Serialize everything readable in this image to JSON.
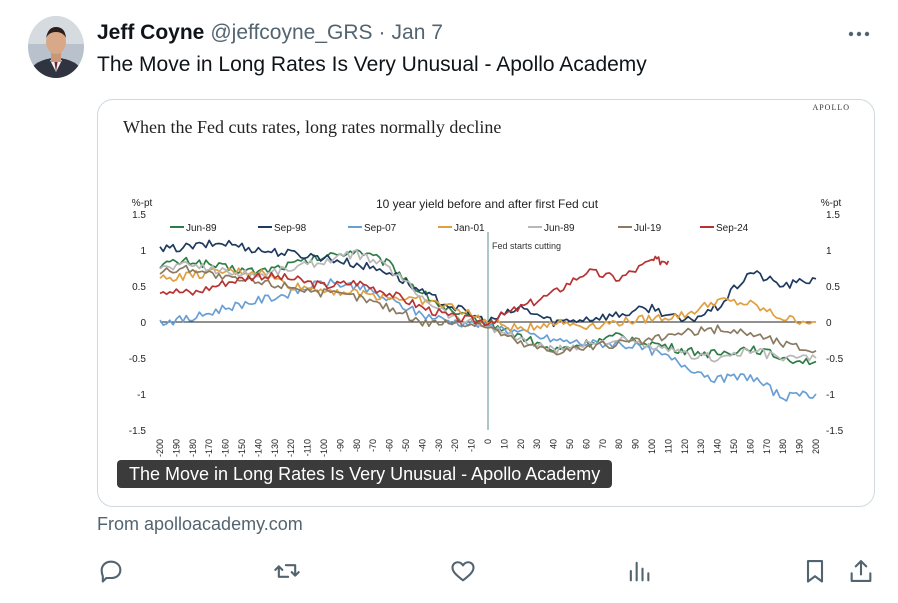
{
  "post": {
    "author_name": "Jeff Coyne",
    "handle": "@jeffcoyne_GRS",
    "separator": "·",
    "date": "Jan 7",
    "text": "The Move in Long Rates Is Very Unusual - Apollo Academy"
  },
  "card": {
    "title": "The Move in Long Rates Is Very Unusual - Apollo Academy",
    "source": "From apolloacademy.com"
  },
  "actions": [
    "reply-icon",
    "repost-icon",
    "like-icon",
    "views-icon",
    "bookmark-icon",
    "share-icon"
  ],
  "chart_data": {
    "type": "line",
    "brand": "APOLLO",
    "headline": "When the Fed cuts rates, long rates normally decline",
    "title": "10 year yield before and after first Fed cut",
    "left_unit": "%-pt",
    "right_unit": "%-pt",
    "annotation": "Fed starts cutting",
    "ylim": [
      -1.5,
      1.5
    ],
    "yticks": [
      "1.5",
      "1",
      "0.5",
      "0",
      "-0.5",
      "-1",
      "-1.5"
    ],
    "xlim": [
      -200,
      200
    ],
    "xticks": [
      "-200",
      "-190",
      "-180",
      "-170",
      "-160",
      "-150",
      "-140",
      "-130",
      "-120",
      "-110",
      "-100",
      "-90",
      "-80",
      "-70",
      "-60",
      "-50",
      "-40",
      "-30",
      "-20",
      "-10",
      "0",
      "10",
      "20",
      "30",
      "40",
      "50",
      "60",
      "70",
      "80",
      "90",
      "100",
      "110",
      "120",
      "130",
      "140",
      "150",
      "160",
      "170",
      "180",
      "190",
      "200"
    ],
    "legend_position": "top",
    "series": [
      {
        "name": "Jun-89",
        "color": "#2e7d46",
        "x": [
          -200,
          -180,
          -160,
          -140,
          -120,
          -100,
          -80,
          -60,
          -40,
          -20,
          0,
          20,
          40,
          60,
          80,
          100,
          120,
          140,
          160,
          180,
          200
        ],
        "y": [
          0.8,
          0.85,
          0.75,
          0.7,
          0.8,
          0.9,
          1.0,
          0.8,
          0.4,
          0.1,
          0.0,
          -0.2,
          -0.4,
          -0.3,
          -0.2,
          -0.3,
          -0.4,
          -0.45,
          -0.35,
          -0.5,
          -0.55
        ]
      },
      {
        "name": "Sep-98",
        "color": "#1f3a5f",
        "x": [
          -200,
          -180,
          -160,
          -140,
          -120,
          -100,
          -80,
          -60,
          -40,
          -20,
          0,
          20,
          40,
          60,
          80,
          100,
          120,
          140,
          160,
          180,
          200
        ],
        "y": [
          1.0,
          1.05,
          1.1,
          1.0,
          0.95,
          0.9,
          0.8,
          0.7,
          0.4,
          0.2,
          0.0,
          0.2,
          0.0,
          0.05,
          0.1,
          0.2,
          0.0,
          0.2,
          0.7,
          0.5,
          0.6
        ]
      },
      {
        "name": "Sep-07",
        "color": "#6a9fd4",
        "x": [
          -200,
          -180,
          -160,
          -140,
          -120,
          -100,
          -80,
          -60,
          -40,
          -20,
          0,
          20,
          40,
          60,
          80,
          100,
          120,
          140,
          160,
          180,
          200
        ],
        "y": [
          0.0,
          0.05,
          0.2,
          0.3,
          0.4,
          0.55,
          0.5,
          0.3,
          0.1,
          0.0,
          -0.05,
          -0.15,
          -0.25,
          -0.3,
          -0.3,
          -0.4,
          -0.6,
          -0.8,
          -0.75,
          -1.05,
          -1.0
        ]
      },
      {
        "name": "Jan-01",
        "color": "#e0a040",
        "x": [
          -200,
          -180,
          -160,
          -140,
          -120,
          -100,
          -80,
          -60,
          -40,
          -20,
          0,
          20,
          40,
          60,
          80,
          100,
          120,
          140,
          160,
          180,
          200
        ],
        "y": [
          0.6,
          0.65,
          0.7,
          0.7,
          0.5,
          0.45,
          0.4,
          0.35,
          0.3,
          0.2,
          0.0,
          -0.1,
          0.0,
          -0.05,
          0.0,
          0.05,
          0.1,
          0.3,
          0.25,
          0.05,
          0.0
        ]
      },
      {
        "name": "Jun-89",
        "color": "#b8b8b8",
        "x": [
          -200,
          -180,
          -160,
          -140,
          -120,
          -100,
          -80,
          -60,
          -40,
          -20,
          0,
          20,
          40,
          60,
          80,
          100,
          120,
          140,
          160,
          180,
          200
        ],
        "y": [
          0.75,
          0.8,
          0.7,
          0.65,
          0.75,
          0.85,
          0.95,
          0.75,
          0.35,
          0.05,
          -0.05,
          -0.25,
          -0.4,
          -0.3,
          -0.25,
          -0.35,
          -0.45,
          -0.5,
          -0.4,
          -0.5,
          -0.5
        ]
      },
      {
        "name": "Jul-19",
        "color": "#8a7a60",
        "x": [
          -200,
          -180,
          -160,
          -140,
          -120,
          -100,
          -80,
          -60,
          -40,
          -20,
          0,
          20,
          40,
          60,
          80,
          100,
          120,
          140,
          160,
          180,
          200
        ],
        "y": [
          0.7,
          0.75,
          0.6,
          0.55,
          0.5,
          0.4,
          0.35,
          0.2,
          0.0,
          0.0,
          -0.05,
          -0.3,
          -0.4,
          -0.35,
          -0.3,
          -0.25,
          -0.15,
          -0.1,
          -0.15,
          -0.3,
          -0.4
        ]
      },
      {
        "name": "Sep-24",
        "color": "#b83232",
        "x": [
          -200,
          -180,
          -160,
          -140,
          -120,
          -100,
          -80,
          -60,
          -40,
          -20,
          0,
          20,
          40,
          60,
          80,
          100,
          110
        ],
        "y": [
          0.45,
          0.4,
          0.55,
          0.65,
          0.6,
          0.5,
          0.55,
          0.4,
          0.2,
          0.05,
          0.0,
          0.2,
          0.4,
          0.7,
          0.6,
          0.85,
          0.85
        ]
      }
    ]
  }
}
